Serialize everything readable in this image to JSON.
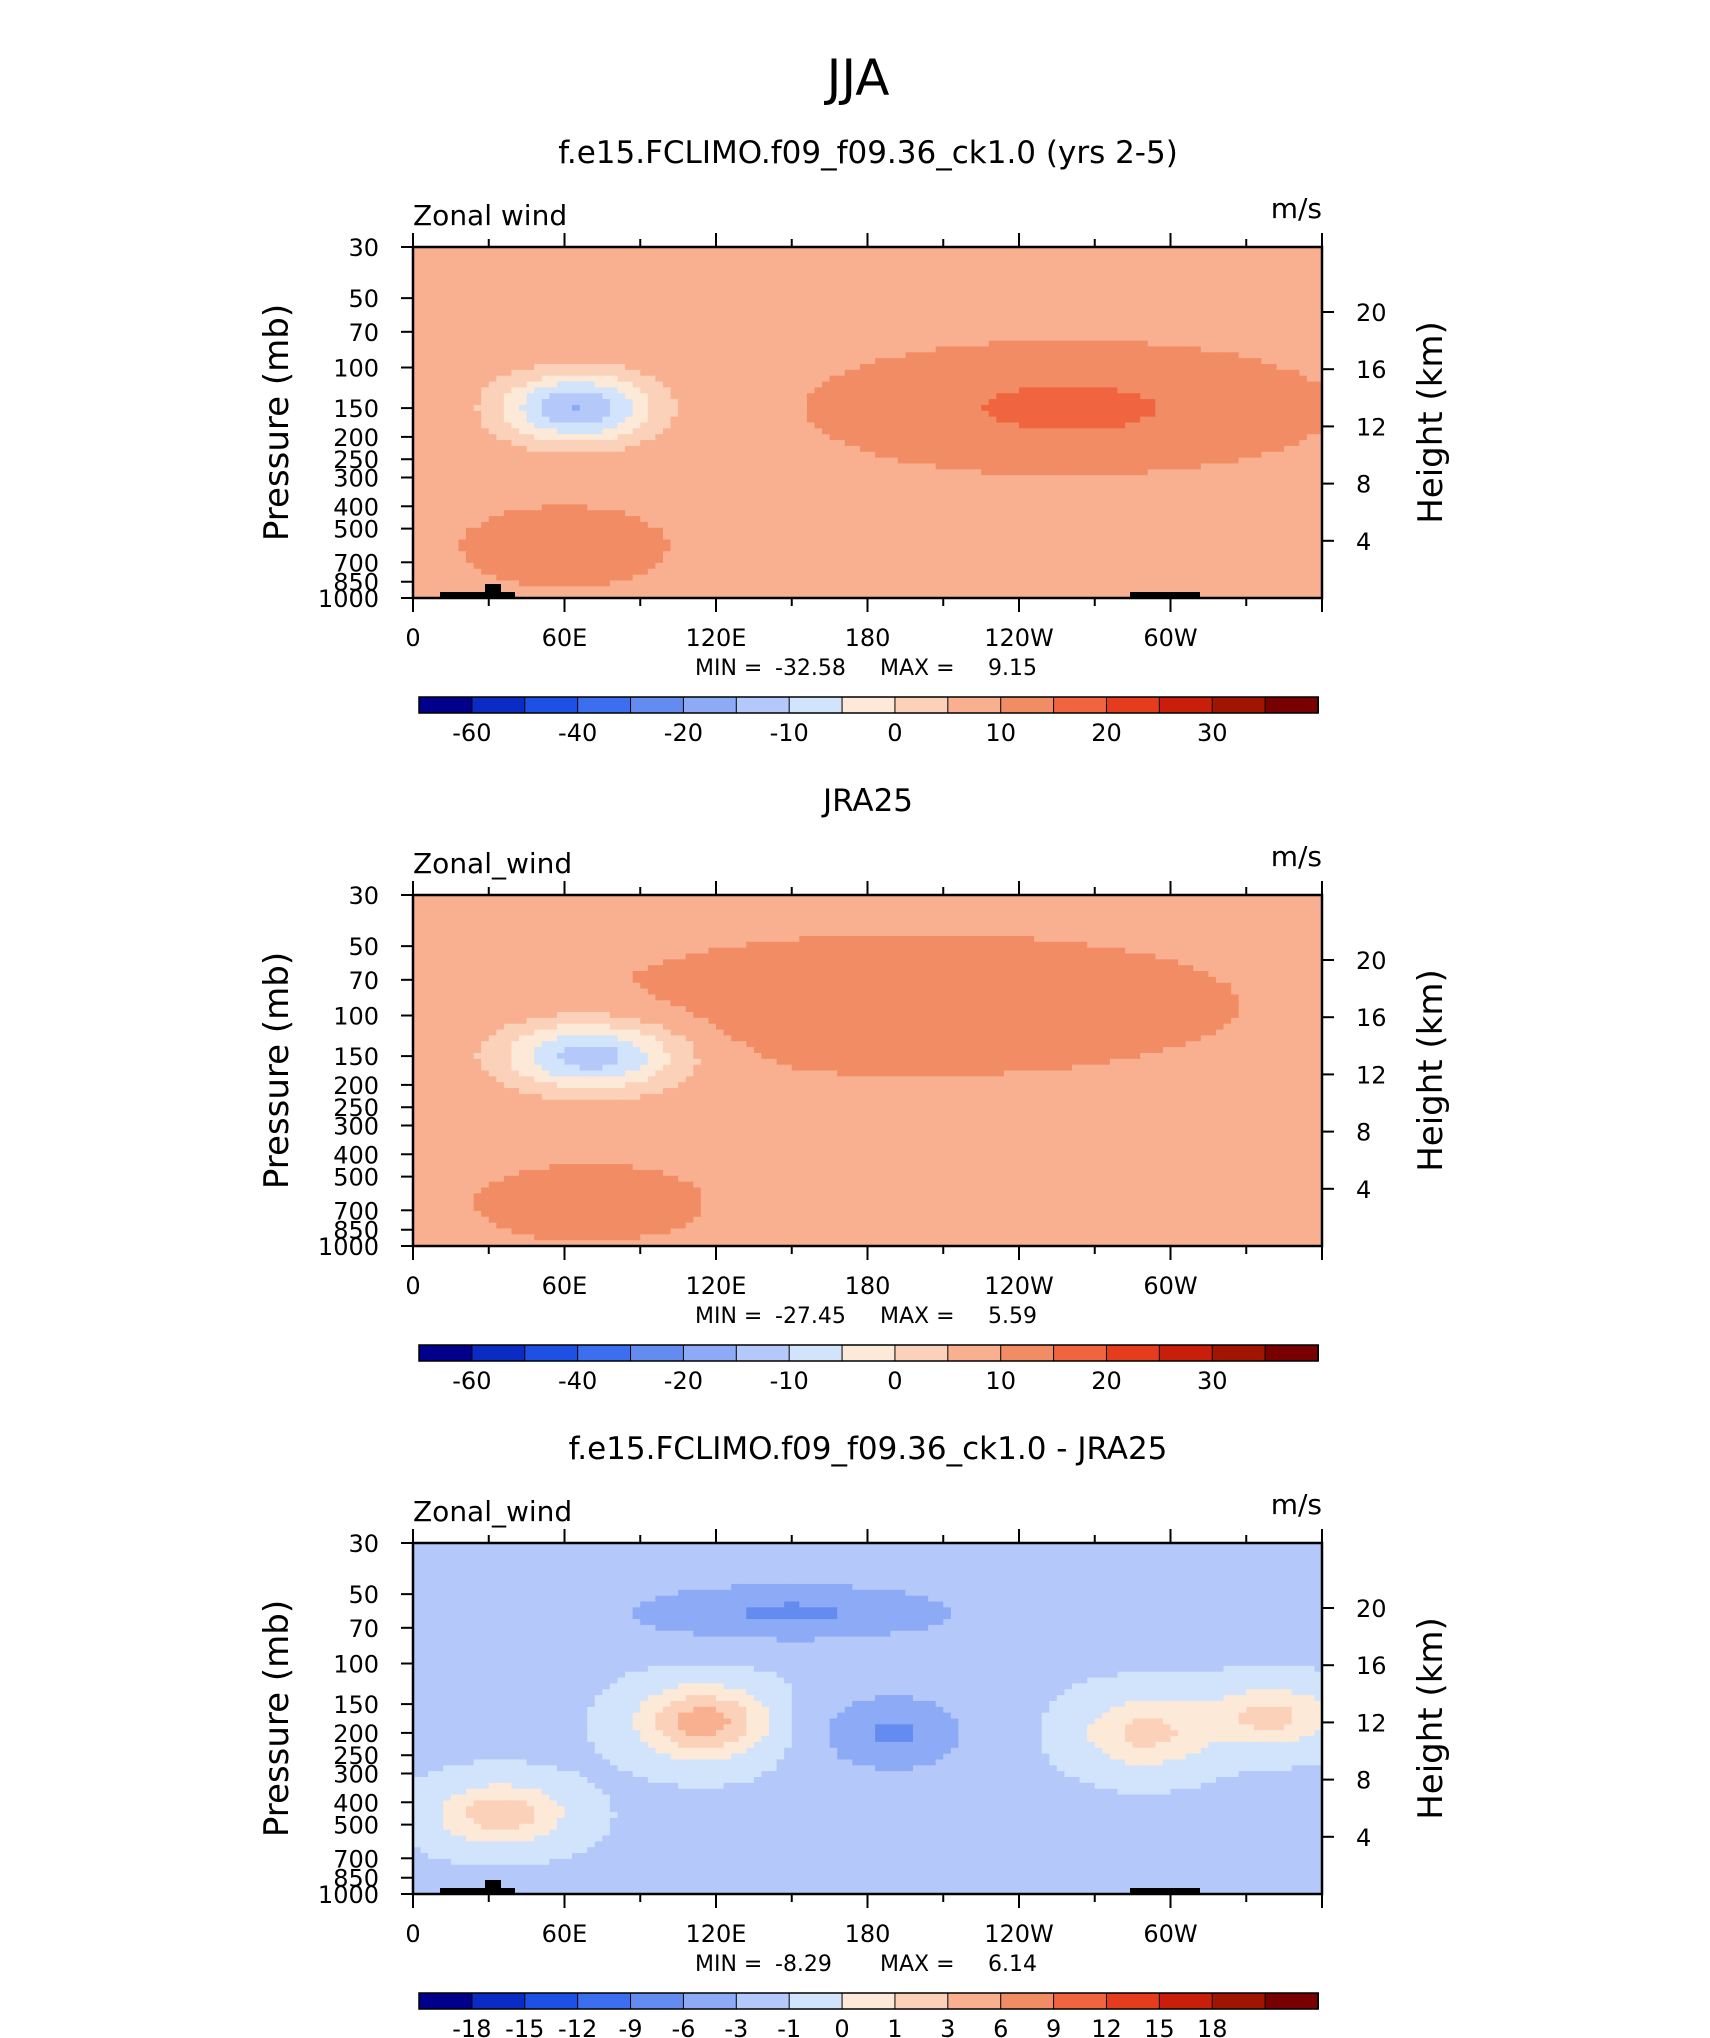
{
  "page_title": "JJA",
  "colors": {
    "cmap_main": [
      "#00008c",
      "#0a2bc4",
      "#1e50e6",
      "#3c6ef0",
      "#648cf0",
      "#8caaf5",
      "#b4c8fa",
      "#d2e4fb",
      "#fde9d8",
      "#fbd2b9",
      "#f8b090",
      "#f28c64",
      "#f06440",
      "#e63c1e",
      "#c81e0a",
      "#a01400",
      "#780000"
    ],
    "cmap_diff": [
      "#00008c",
      "#0a2bc4",
      "#1e50e6",
      "#3c6ef0",
      "#648cf0",
      "#8caaf5",
      "#b4c8fa",
      "#d2e4fb",
      "#fde9d8",
      "#fbd2b9",
      "#f8b090",
      "#f28c64",
      "#f06440",
      "#e63c1e",
      "#c81e0a",
      "#a01400",
      "#780000"
    ]
  },
  "chart_data": [
    {
      "type": "heatmap",
      "title": "f.e15.FCLIMO.f09_f09.36_ck1.0 (yrs 2-5)",
      "left_label": "Zonal wind",
      "right_label": "m/s",
      "ylabel": "Pressure (mb)",
      "ylabel_right": "Height (km)",
      "pressure_ticks": [
        "30",
        "50",
        "70",
        "100",
        "150",
        "200",
        "250",
        "300",
        "400",
        "500",
        "700",
        "850",
        "1000"
      ],
      "height_ticks": [
        "20",
        "16",
        "12",
        "8",
        "4"
      ],
      "x_ticks": [
        "0",
        "60E",
        "120E",
        "180",
        "120W",
        "60W"
      ],
      "stats": {
        "min_label": "MIN =",
        "min": "-32.58",
        "max_label": "MAX =",
        "max": "9.15"
      },
      "colorbar_labels": [
        "-60",
        "-40",
        "-20",
        "-10",
        "0",
        "10",
        "20",
        "30"
      ],
      "value_range": [
        -70,
        35
      ],
      "background_value": -3,
      "blobs": [
        {
          "lon": 65,
          "p": 150,
          "amp": -30,
          "slon": 30,
          "sp": 0.35
        },
        {
          "lon": 260,
          "p": 150,
          "amp": 9,
          "slon": 70,
          "sp": 0.45
        },
        {
          "lon": 60,
          "p": 600,
          "amp": 6,
          "slon": 30,
          "sp": 0.3
        },
        {
          "lon": 290,
          "p": 500,
          "amp": -5,
          "slon": 30,
          "sp": 0.25
        }
      ],
      "topography": true
    },
    {
      "type": "heatmap",
      "title": "JRA25",
      "left_label": "Zonal_wind",
      "right_label": "m/s",
      "ylabel": "Pressure (mb)",
      "ylabel_right": "Height (km)",
      "pressure_ticks": [
        "30",
        "50",
        "70",
        "100",
        "150",
        "200",
        "250",
        "300",
        "400",
        "500",
        "700",
        "850",
        "1000"
      ],
      "height_ticks": [
        "20",
        "16",
        "12",
        "8",
        "4"
      ],
      "x_ticks": [
        "0",
        "60E",
        "120E",
        "180",
        "120W",
        "60W"
      ],
      "stats": {
        "min_label": "MIN =",
        "min": "-27.45",
        "max_label": "MAX =",
        "max": "5.59"
      },
      "colorbar_labels": [
        "-60",
        "-40",
        "-20",
        "-10",
        "0",
        "10",
        "20",
        "30"
      ],
      "value_range": [
        -70,
        35
      ],
      "background_value": -3,
      "blobs": [
        {
          "lon": 70,
          "p": 150,
          "amp": -27,
          "slon": 35,
          "sp": 0.35
        },
        {
          "lon": 200,
          "p": 90,
          "amp": 7,
          "slon": 90,
          "sp": 0.5
        },
        {
          "lon": 70,
          "p": 650,
          "amp": 5,
          "slon": 35,
          "sp": 0.3
        }
      ],
      "topography": false
    },
    {
      "type": "heatmap",
      "title": "f.e15.FCLIMO.f09_f09.36_ck1.0 - JRA25",
      "left_label": "Zonal_wind",
      "right_label": "m/s",
      "ylabel": "Pressure (mb)",
      "ylabel_right": "Height (km)",
      "pressure_ticks": [
        "30",
        "50",
        "70",
        "100",
        "150",
        "200",
        "250",
        "300",
        "400",
        "500",
        "700",
        "850",
        "1000"
      ],
      "height_ticks": [
        "20",
        "16",
        "12",
        "8",
        "4"
      ],
      "x_ticks": [
        "0",
        "60E",
        "120E",
        "180",
        "120W",
        "60W"
      ],
      "stats": {
        "min_label": "MIN =",
        "min": "-8.29",
        "max_label": "MAX =",
        "max": "6.14"
      },
      "colorbar_labels": [
        "-18",
        "-15",
        "-12",
        "-9",
        "-6",
        "-3",
        "-1",
        "0",
        "1",
        "3",
        "6",
        "9",
        "12",
        "15",
        "18"
      ],
      "value_range": [
        -21,
        21
      ],
      "background_value": -4,
      "blobs": [
        {
          "lon": 150,
          "p": 60,
          "amp": -5,
          "slon": 70,
          "sp": 0.3
        },
        {
          "lon": 115,
          "p": 180,
          "amp": 9,
          "slon": 25,
          "sp": 0.35
        },
        {
          "lon": 290,
          "p": 200,
          "amp": 6,
          "slon": 25,
          "sp": 0.35
        },
        {
          "lon": 340,
          "p": 170,
          "amp": 6,
          "slon": 25,
          "sp": 0.3
        },
        {
          "lon": 190,
          "p": 200,
          "amp": -5,
          "slon": 30,
          "sp": 0.4
        },
        {
          "lon": 35,
          "p": 450,
          "amp": 7,
          "slon": 25,
          "sp": 0.3
        }
      ],
      "topography": true
    }
  ]
}
